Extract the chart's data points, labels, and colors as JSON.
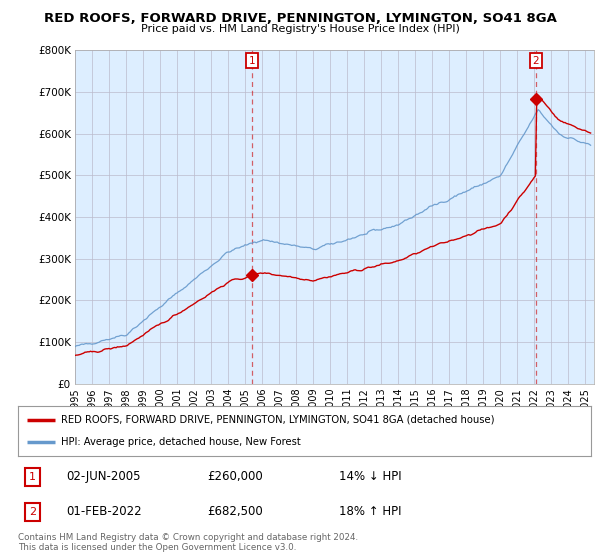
{
  "title": "RED ROOFS, FORWARD DRIVE, PENNINGTON, LYMINGTON, SO41 8GA",
  "subtitle": "Price paid vs. HM Land Registry's House Price Index (HPI)",
  "red_label": "RED ROOFS, FORWARD DRIVE, PENNINGTON, LYMINGTON, SO41 8GA (detached house)",
  "blue_label": "HPI: Average price, detached house, New Forest",
  "transaction1": {
    "label": "1",
    "date": "02-JUN-2005",
    "price": "£260,000",
    "pct": "14% ↓ HPI"
  },
  "transaction2": {
    "label": "2",
    "date": "01-FEB-2022",
    "price": "£682,500",
    "pct": "18% ↑ HPI"
  },
  "footnote1": "Contains HM Land Registry data © Crown copyright and database right 2024.",
  "footnote2": "This data is licensed under the Open Government Licence v3.0.",
  "ylim": [
    0,
    800000
  ],
  "yticks": [
    0,
    100000,
    200000,
    300000,
    400000,
    500000,
    600000,
    700000,
    800000
  ],
  "ytick_labels": [
    "£0",
    "£100K",
    "£200K",
    "£300K",
    "£400K",
    "£500K",
    "£600K",
    "£700K",
    "£800K"
  ],
  "xlim_start": 1995.0,
  "xlim_end": 2025.5,
  "red_color": "#cc0000",
  "blue_color": "#6699cc",
  "chart_fill": "#ddeeff",
  "background_color": "#ffffff",
  "grid_color": "#bbbbcc",
  "transaction1_x": 2005.42,
  "transaction1_y": 260000,
  "transaction2_x": 2022.08,
  "transaction2_y": 682500
}
